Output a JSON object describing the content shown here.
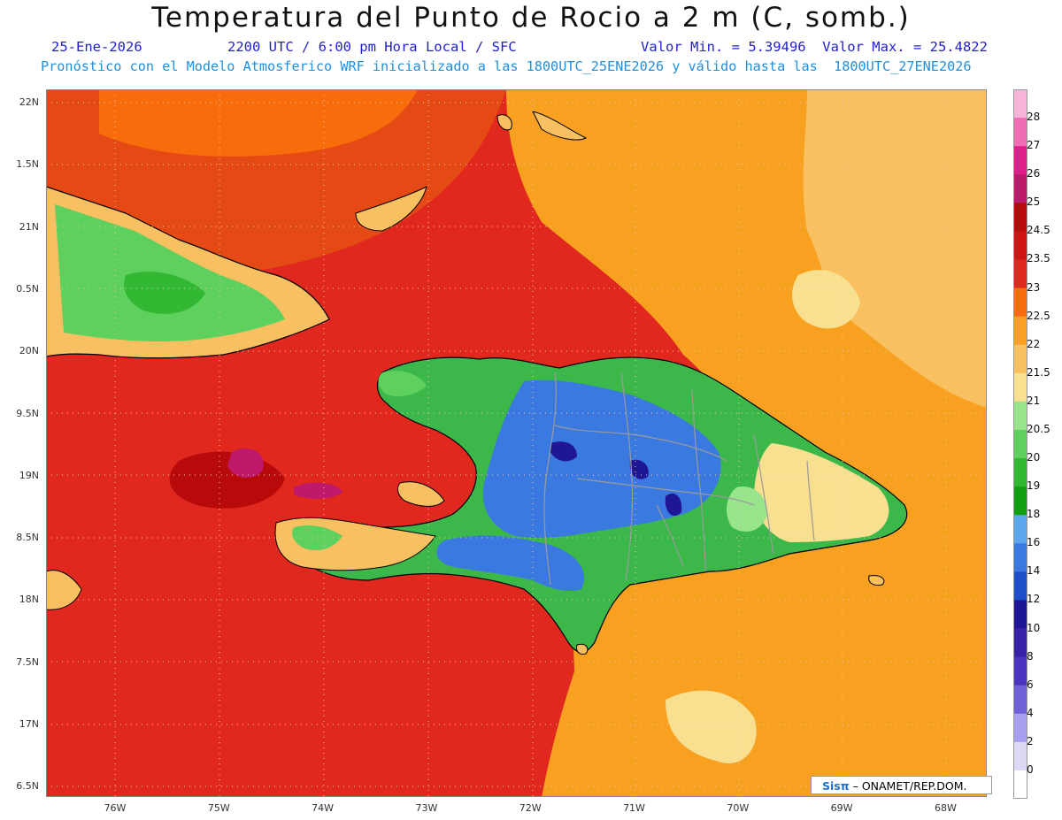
{
  "title": "Temperatura del Punto de Rocio a 2 m (C, somb.)",
  "date_line": "25-Ene-2026",
  "time_line": "2200 UTC / 6:00 pm Hora Local / SFC",
  "minmax_line": "Valor Min. = 5.39496  Valor Max. = 25.4822",
  "forecast_line": "Pronóstico con el Modelo Atmosferico WRF inicializado a las 1800UTC_25ENE2026 y válido hasta las  1800UTC_27ENE2026",
  "credit": {
    "logo": "Sisπ",
    "text": " – ONAMET/REP.DOM."
  },
  "colors": {
    "title": "#111111",
    "subtitle": "#1f1fd0",
    "forecast": "#1f8fe0",
    "land_blue": "#3c7de0",
    "land_green": "#3cb84a",
    "sea_red": "#e0281e"
  },
  "axes": {
    "y_labels": [
      "22N",
      "1.5N",
      "21N",
      "0.5N",
      "20N",
      "9.5N",
      "19N",
      "8.5N",
      "18N",
      "7.5N",
      "17N",
      "6.5N"
    ],
    "x_labels": [
      "76W",
      "75W",
      "74W",
      "73W",
      "72W",
      "71W",
      "70W",
      "69W",
      "68W"
    ]
  },
  "colorbar": {
    "levels": [
      "0",
      "2",
      "4",
      "6",
      "8",
      "10",
      "12",
      "14",
      "16",
      "18",
      "19",
      "20",
      "20.5",
      "21",
      "21.5",
      "22",
      "22.5",
      "23",
      "23.5",
      "24.5",
      "25",
      "26",
      "27",
      "28"
    ],
    "colors": [
      "#ffffff",
      "#dcd9f4",
      "#a99ff0",
      "#7060d8",
      "#4a34c0",
      "#3a22a8",
      "#1f1696",
      "#1d50c8",
      "#3a7ae0",
      "#5ca6ee",
      "#119e11",
      "#33b833",
      "#5ed05e",
      "#97e48a",
      "#f8e090",
      "#f8c060",
      "#f8a020",
      "#f86c0c",
      "#e0281e",
      "#d01414",
      "#b80a0a",
      "#c0186a",
      "#e01e8c",
      "#f06cb4",
      "#f8b4d8"
    ]
  }
}
